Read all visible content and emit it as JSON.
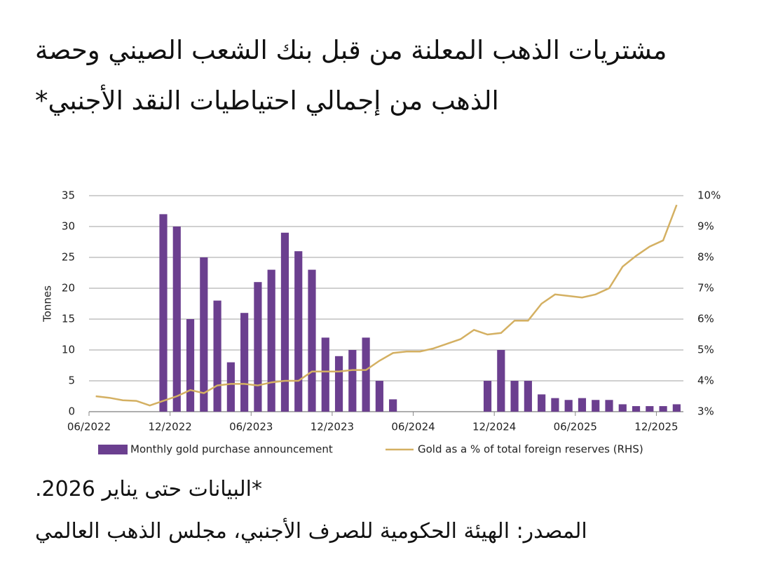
{
  "chart_data": {
    "type": "bar-line",
    "title": "مشتريات الذهب المعلنة من قبل بنك الشعب الصيني وحصة الذهب من إجمالي احتياطيات النقد الأجنبي*",
    "notes": [
      "*البيانات حتى يناير 2026.",
      "المصدر: الهيئة الحكومية للصرف الأجنبي، مجلس الذهب العالمي"
    ],
    "ylabel": "Tonnes",
    "categories": [
      "06/2022",
      null,
      null,
      null,
      null,
      null,
      "12/2022",
      null,
      null,
      null,
      null,
      null,
      "06/2023",
      null,
      null,
      null,
      null,
      null,
      "12/2023",
      null,
      null,
      null,
      null,
      null,
      "06/2024",
      null,
      null,
      null,
      null,
      null,
      "12/2024",
      null,
      null,
      null,
      null,
      null,
      "06/2025",
      null,
      null,
      null,
      null,
      null,
      "12/2025",
      null
    ],
    "series": [
      {
        "name": "Monthly gold purchase announcement",
        "color": "#6b3f8f",
        "kind": "bar",
        "values": [
          0,
          0,
          0,
          0,
          0,
          32,
          30,
          15,
          25,
          18,
          8,
          16,
          21,
          23,
          29,
          26,
          23,
          12,
          9,
          10,
          12,
          5,
          2,
          0,
          0,
          0,
          0,
          0,
          0,
          5,
          10,
          5,
          5,
          2.8,
          2.2,
          1.9,
          2.2,
          1.9,
          1.9,
          1.2,
          0.9,
          0.9,
          0.9,
          1.2
        ]
      },
      {
        "name": "Gold as a % of total foreign reserves (RHS)",
        "color": "#d4b062",
        "kind": "line",
        "axis": "y2",
        "values": [
          3.5,
          3.45,
          3.37,
          3.35,
          3.2,
          3.35,
          3.5,
          3.7,
          3.6,
          3.85,
          3.9,
          3.9,
          3.85,
          3.95,
          4.0,
          4.0,
          4.3,
          4.3,
          4.3,
          4.35,
          4.35,
          4.65,
          4.9,
          4.95,
          4.95,
          5.05,
          5.2,
          5.35,
          5.65,
          5.5,
          5.55,
          5.95,
          5.95,
          6.5,
          6.8,
          6.75,
          6.7,
          6.8,
          7.0,
          7.7,
          8.05,
          8.35,
          8.55,
          9.7
        ]
      }
    ],
    "ylim": [
      0,
      35
    ],
    "yticks": [
      0,
      5,
      10,
      15,
      20,
      25,
      30,
      35
    ],
    "y2lim": [
      3,
      10
    ],
    "y2ticks": [
      {
        "value": 3,
        "label": "3%"
      },
      {
        "value": 4,
        "label": "4%"
      },
      {
        "value": 5,
        "label": "5%"
      },
      {
        "value": 6,
        "label": "6%"
      },
      {
        "value": 7,
        "label": "7%"
      },
      {
        "value": 8,
        "label": "8%"
      },
      {
        "value": 9,
        "label": "9%"
      },
      {
        "value": 10,
        "label": "10%"
      }
    ],
    "grid": true,
    "legend": "bottom"
  }
}
